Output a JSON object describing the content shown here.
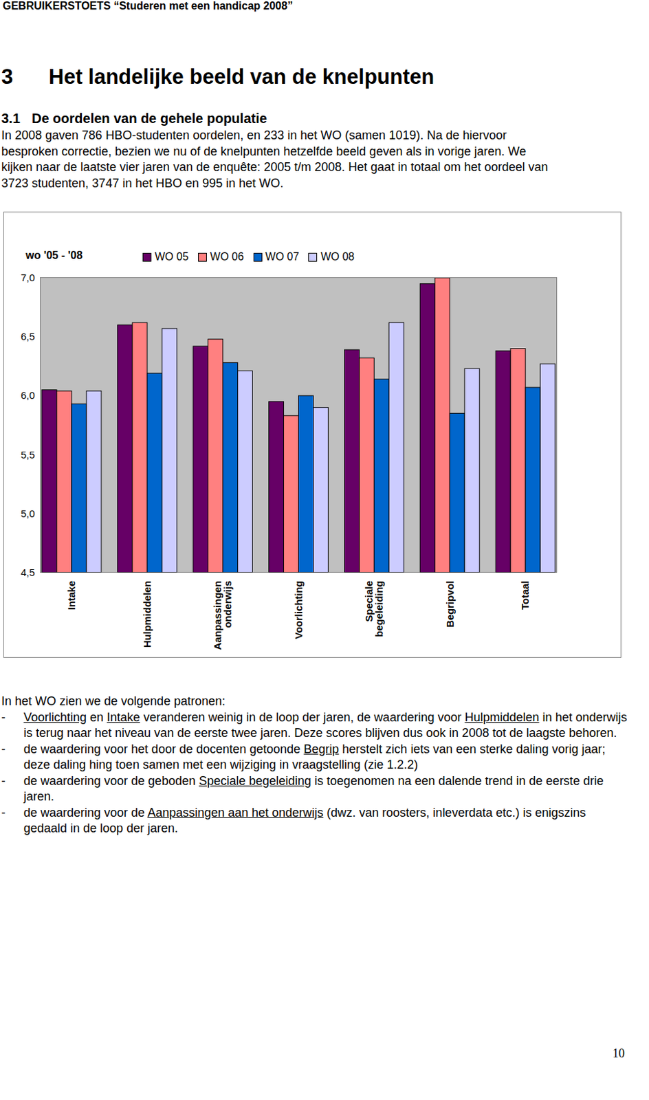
{
  "header": "GEBRUIKERSTOETS “Studeren met een handicap 2008”",
  "heading": {
    "number": "3",
    "title": "Het landelijke beeld van de knelpunten"
  },
  "subheading": {
    "number": "3.1",
    "title": "De oordelen van de gehele populatie"
  },
  "intro_lines": [
    "In 2008 gaven 786 HBO-studenten oordelen, en 233 in het WO (samen 1019). Na de hiervoor",
    "besproken correctie, bezien we nu of de knelpunten hetzelfde beeld geven als in vorige jaren. We",
    "kijken naar de laatste vier jaren van de enquête: 2005 t/m 2008. Het gaat in totaal om het oordeel van",
    "3723 studenten, 3747 in het HBO en 995 in het WO."
  ],
  "chart_data": {
    "type": "bar",
    "title": "wo '05 - '08",
    "categories": [
      "Intake",
      "Hulpmiddelen",
      "Aanpassingen onderwijs",
      "Voorlichting",
      "Speciale begeleiding",
      "Begripvol",
      "Totaal"
    ],
    "series": [
      {
        "name": "WO 05",
        "color": "#660066",
        "values": [
          6.05,
          6.6,
          6.42,
          5.95,
          6.39,
          6.95,
          6.38
        ]
      },
      {
        "name": "WO 06",
        "color": "#ff8080",
        "values": [
          6.04,
          6.62,
          6.48,
          5.83,
          6.32,
          7.0,
          6.4
        ]
      },
      {
        "name": "WO 07",
        "color": "#0066cc",
        "values": [
          5.93,
          6.19,
          6.28,
          6.0,
          6.14,
          5.85,
          6.07
        ]
      },
      {
        "name": "WO 08",
        "color": "#ccccff",
        "values": [
          6.04,
          6.57,
          6.21,
          5.9,
          6.62,
          6.23,
          6.27
        ]
      }
    ],
    "ylim": [
      4.5,
      7.0
    ],
    "yticks": [
      {
        "value": 4.5,
        "label": "4,5"
      },
      {
        "value": 5.0,
        "label": "5,0"
      },
      {
        "value": 5.5,
        "label": "5,5"
      },
      {
        "value": 6.0,
        "label": "6,0"
      },
      {
        "value": 6.5,
        "label": "6,5"
      },
      {
        "value": 7.0,
        "label": "7,0"
      }
    ],
    "grid": false,
    "legend": "top"
  },
  "patterns_intro": "In het WO zien we de volgende patronen:",
  "bullet_marker": "-",
  "bullets": [
    [
      {
        "text": "Voorlichting",
        "underline": true
      },
      {
        "text": " en ",
        "underline": false
      },
      {
        "text": "Intake",
        "underline": true
      },
      {
        "text": " veranderen weinig in de loop der jaren, de waardering voor ",
        "underline": false
      },
      {
        "text": "Hulpmiddelen",
        "underline": true
      },
      {
        "text": " in het onderwijs is terug naar het niveau van de eerste twee jaren. Deze scores blijven dus ook in 2008 tot de laagste behoren.",
        "underline": false
      }
    ],
    [
      {
        "text": "de waardering voor het door de docenten getoonde ",
        "underline": false
      },
      {
        "text": "Begrip",
        "underline": true
      },
      {
        "text": " herstelt zich iets van een sterke daling vorig jaar; deze daling hing toen samen met een wijziging in vraagstelling (zie 1.2.2)",
        "underline": false
      }
    ],
    [
      {
        "text": "de waardering voor de geboden ",
        "underline": false
      },
      {
        "text": "Speciale begeleiding",
        "underline": true
      },
      {
        "text": " is toegenomen na een dalende trend in de eerste drie jaren.",
        "underline": false
      }
    ],
    [
      {
        "text": "de waardering voor de ",
        "underline": false
      },
      {
        "text": "Aanpassingen aan het onderwijs",
        "underline": true
      },
      {
        "text": " (dwz. van roosters, inleverdata etc.) is enigszins gedaald in de loop der jaren.",
        "underline": false
      }
    ]
  ],
  "page_number": "10"
}
